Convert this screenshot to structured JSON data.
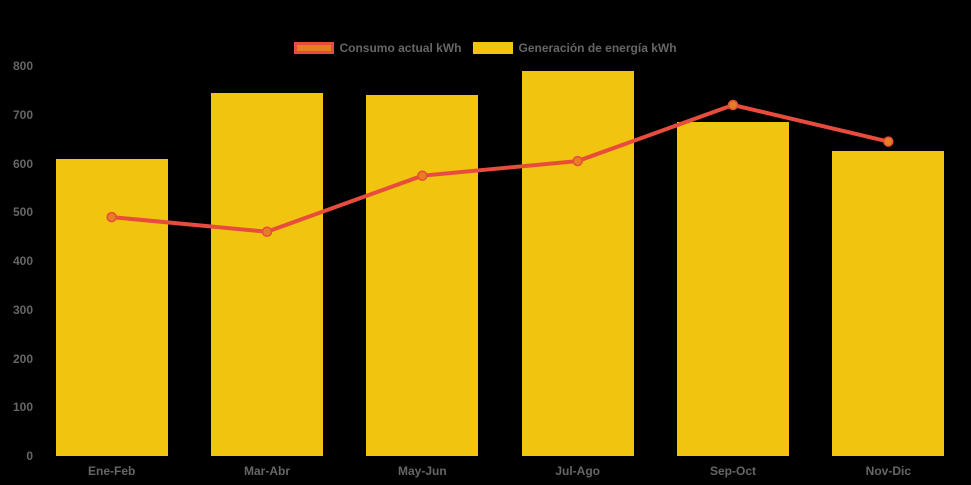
{
  "chart_data": {
    "type": "mixed",
    "categories": [
      "Ene-Feb",
      "Mar-Abr",
      "May-Jun",
      "Jul-Ago",
      "Sep-Oct",
      "Nov-Dic"
    ],
    "series": [
      {
        "name": "Consumo actual kWh",
        "type": "line",
        "values": [
          490,
          460,
          575,
          605,
          720,
          645
        ],
        "line_color": "#e74c3c",
        "marker_color": "#e67e22"
      },
      {
        "name": "Generación de energía kWh",
        "type": "bar",
        "values": [
          610,
          745,
          740,
          790,
          685,
          625
        ],
        "color": "#f1c40f"
      }
    ],
    "title": "",
    "xlabel": "",
    "ylabel": "",
    "ylim": [
      0,
      800
    ],
    "y_ticks": [
      0,
      100,
      200,
      300,
      400,
      500,
      600,
      700,
      800
    ],
    "grid": false,
    "legend_position": "top",
    "background_color": "#000000",
    "text_color": "#666666"
  }
}
